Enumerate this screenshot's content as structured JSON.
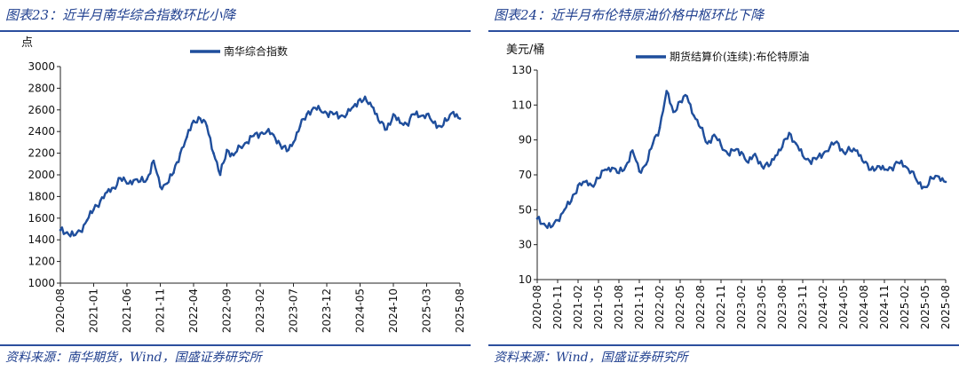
{
  "left": {
    "title": "图表23：近半月南华综合指数环比小降",
    "source": "资料来源：南华期货，Wind，国盛证券研究所",
    "color": "#1f4e9c",
    "chart_data": {
      "type": "line",
      "title": "图表23：近半月南华综合指数环比小降",
      "ylabel": "点",
      "xlabel": "",
      "ylim": [
        1000,
        3000
      ],
      "yticks": [
        1000,
        1200,
        1400,
        1600,
        1800,
        2000,
        2200,
        2400,
        2600,
        2800,
        3000
      ],
      "x_range": [
        "2020-08",
        "2025-08"
      ],
      "xticks": [
        "2020-08",
        "2021-01",
        "2021-06",
        "2021-11",
        "2022-04",
        "2022-09",
        "2023-02",
        "2023-07",
        "2023-12",
        "2024-05",
        "2024-10",
        "2025-03",
        "2025-08"
      ],
      "legend_position": "top-center",
      "grid": false,
      "series": [
        {
          "name": "南华综合指数",
          "x": [
            "2020-08",
            "2020-09",
            "2020-10",
            "2020-11",
            "2020-12",
            "2021-01",
            "2021-02",
            "2021-03",
            "2021-04",
            "2021-05",
            "2021-06",
            "2021-07",
            "2021-08",
            "2021-09",
            "2021-10",
            "2021-11",
            "2021-12",
            "2022-01",
            "2022-02",
            "2022-03",
            "2022-04",
            "2022-05",
            "2022-06",
            "2022-07",
            "2022-08",
            "2022-09",
            "2022-10",
            "2022-11",
            "2022-12",
            "2023-01",
            "2023-02",
            "2023-03",
            "2023-04",
            "2023-05",
            "2023-06",
            "2023-07",
            "2023-08",
            "2023-09",
            "2023-10",
            "2023-11",
            "2023-12",
            "2024-01",
            "2024-02",
            "2024-03",
            "2024-04",
            "2024-05",
            "2024-06",
            "2024-07",
            "2024-08",
            "2024-09",
            "2024-10",
            "2024-11",
            "2024-12",
            "2025-01",
            "2025-02",
            "2025-03",
            "2025-04",
            "2025-05",
            "2025-06",
            "2025-07",
            "2025-08"
          ],
          "values": [
            1490,
            1470,
            1440,
            1480,
            1580,
            1680,
            1760,
            1840,
            1880,
            1970,
            1920,
            1950,
            1940,
            1960,
            2130,
            1890,
            1920,
            2020,
            2200,
            2350,
            2500,
            2520,
            2450,
            2200,
            2000,
            2230,
            2180,
            2260,
            2300,
            2360,
            2380,
            2400,
            2370,
            2280,
            2220,
            2300,
            2450,
            2560,
            2620,
            2600,
            2570,
            2560,
            2540,
            2560,
            2630,
            2700,
            2680,
            2620,
            2480,
            2420,
            2560,
            2480,
            2470,
            2560,
            2540,
            2560,
            2480,
            2450,
            2500,
            2580,
            2520
          ]
        }
      ]
    }
  },
  "right": {
    "title": "图表24：近半月布伦特原油价格中枢环比下降",
    "source": "资料来源：Wind，国盛证券研究所",
    "color": "#1f4e9c",
    "chart_data": {
      "type": "line",
      "title": "图表24：近半月布伦特原油价格中枢环比下降",
      "ylabel": "美元/桶",
      "xlabel": "",
      "ylim": [
        10,
        130
      ],
      "yticks": [
        10,
        30,
        50,
        70,
        90,
        110,
        130
      ],
      "x_range": [
        "2020-08",
        "2025-08"
      ],
      "xticks": [
        "2020-08",
        "2020-11",
        "2021-02",
        "2021-05",
        "2021-08",
        "2021-11",
        "2022-02",
        "2022-05",
        "2022-08",
        "2022-11",
        "2023-02",
        "2023-05",
        "2023-08",
        "2023-11",
        "2024-02",
        "2024-05",
        "2024-08",
        "2024-11",
        "2025-02",
        "2025-05",
        "2025-08"
      ],
      "legend_position": "top-center",
      "grid": false,
      "series": [
        {
          "name": "期货结算价(连续):布伦特原油",
          "x": [
            "2020-08",
            "2020-09",
            "2020-10",
            "2020-11",
            "2020-12",
            "2021-01",
            "2021-02",
            "2021-03",
            "2021-04",
            "2021-05",
            "2021-06",
            "2021-07",
            "2021-08",
            "2021-09",
            "2021-10",
            "2021-11",
            "2021-12",
            "2022-01",
            "2022-02",
            "2022-03",
            "2022-04",
            "2022-05",
            "2022-06",
            "2022-07",
            "2022-08",
            "2022-09",
            "2022-10",
            "2022-11",
            "2022-12",
            "2023-01",
            "2023-02",
            "2023-03",
            "2023-04",
            "2023-05",
            "2023-06",
            "2023-07",
            "2023-08",
            "2023-09",
            "2023-10",
            "2023-11",
            "2023-12",
            "2024-01",
            "2024-02",
            "2024-03",
            "2024-04",
            "2024-05",
            "2024-06",
            "2024-07",
            "2024-08",
            "2024-09",
            "2024-10",
            "2024-11",
            "2024-12",
            "2025-01",
            "2025-02",
            "2025-03",
            "2025-04",
            "2025-05",
            "2025-06",
            "2025-07",
            "2025-08"
          ],
          "values": [
            45,
            42,
            40,
            44,
            50,
            55,
            64,
            66,
            64,
            68,
            73,
            74,
            71,
            75,
            84,
            72,
            76,
            88,
            97,
            118,
            106,
            112,
            115,
            104,
            97,
            88,
            93,
            87,
            82,
            84,
            83,
            77,
            82,
            75,
            75,
            81,
            86,
            94,
            88,
            81,
            78,
            79,
            82,
            86,
            89,
            83,
            84,
            84,
            77,
            73,
            75,
            73,
            74,
            77,
            75,
            72,
            65,
            63,
            68,
            69,
            66
          ]
        }
      ]
    }
  }
}
